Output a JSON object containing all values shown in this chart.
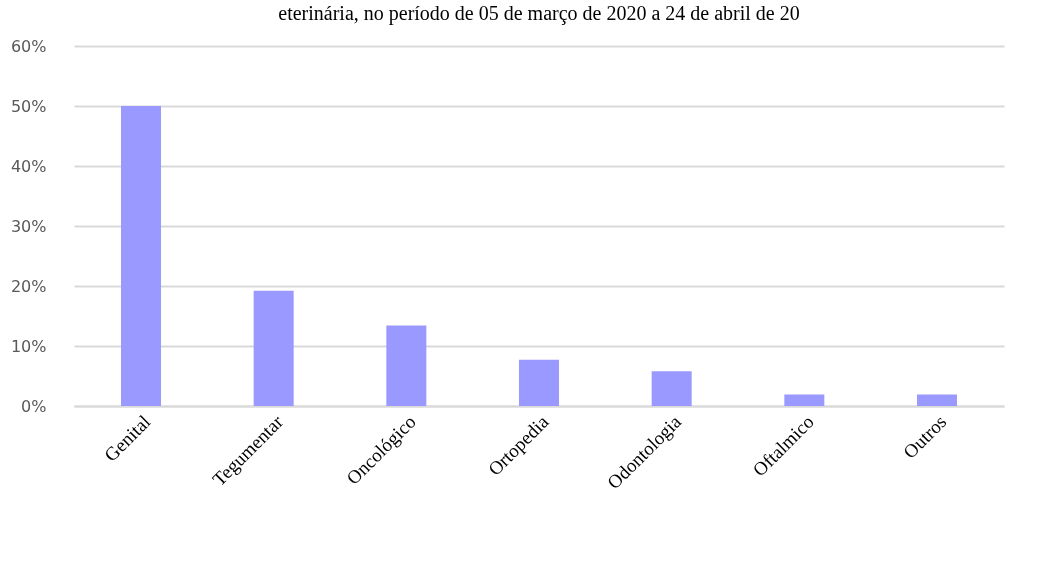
{
  "chart_data": {
    "type": "bar",
    "title": "eterinária, no período de 05 de março de 2020 a 24 de abril de 20",
    "categories": [
      "Genital",
      "Tegumentar",
      "Oncológico",
      "Ortopedia",
      "Odontologia",
      "Oftalmico",
      "Outros"
    ],
    "values": [
      50,
      19.2,
      13.4,
      7.7,
      5.8,
      1.9,
      1.9
    ],
    "color": "#9999ff",
    "ylim": [
      0,
      60
    ],
    "yticks": [
      {
        "value": 0,
        "label": "0%"
      },
      {
        "value": 10,
        "label": "10%"
      },
      {
        "value": 20,
        "label": "20%"
      },
      {
        "value": 30,
        "label": "30%"
      },
      {
        "value": 40,
        "label": "40%"
      },
      {
        "value": 50,
        "label": "50%"
      },
      {
        "value": 60,
        "label": "60%"
      }
    ],
    "grid": "y"
  }
}
